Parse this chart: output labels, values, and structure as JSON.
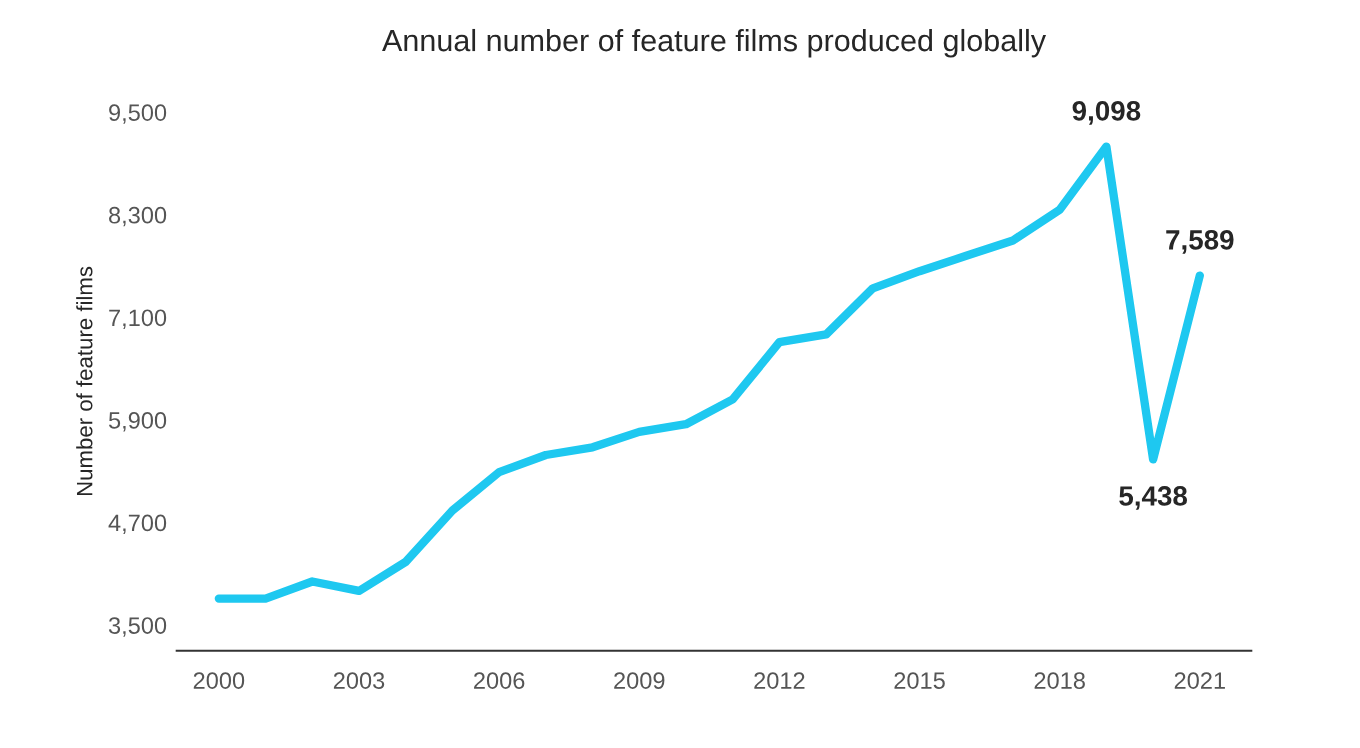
{
  "chart_data": {
    "type": "line",
    "title": "Annual number of feature films produced globally",
    "ylabel": "Number of feature films",
    "x": [
      2000,
      2001,
      2002,
      2003,
      2004,
      2005,
      2006,
      2007,
      2008,
      2009,
      2010,
      2011,
      2012,
      2013,
      2014,
      2015,
      2016,
      2017,
      2018,
      2019,
      2020,
      2021
    ],
    "series": [
      {
        "color": "#1ec8f0",
        "values": [
          3810,
          3810,
          4010,
          3900,
          4240,
          4840,
          5290,
          5490,
          5580,
          5760,
          5850,
          6140,
          6810,
          6900,
          7440,
          7640,
          7820,
          8000,
          8360,
          9098,
          5438,
          7589
        ],
        "value_labels": [
          null,
          null,
          null,
          null,
          null,
          null,
          null,
          null,
          null,
          null,
          null,
          null,
          null,
          null,
          null,
          null,
          null,
          null,
          null,
          "9,098",
          "5,438",
          "7,589"
        ]
      }
    ],
    "xlim": [
      1999.1,
      2022.1
    ],
    "xticks": [
      2000,
      2003,
      2006,
      2009,
      2012,
      2015,
      2018,
      2021
    ],
    "ylim": [
      3200,
      9500
    ],
    "yticks": [
      {
        "value": 3500,
        "label": "3,500"
      },
      {
        "value": 4700,
        "label": "4,700"
      },
      {
        "value": 5900,
        "label": "5,900"
      },
      {
        "value": 7100,
        "label": "7,100"
      },
      {
        "value": 8300,
        "label": "8,300"
      },
      {
        "value": 9500,
        "label": "9,500"
      }
    ],
    "grid": false,
    "legend": false,
    "marker": "none",
    "line_style": "solid"
  }
}
